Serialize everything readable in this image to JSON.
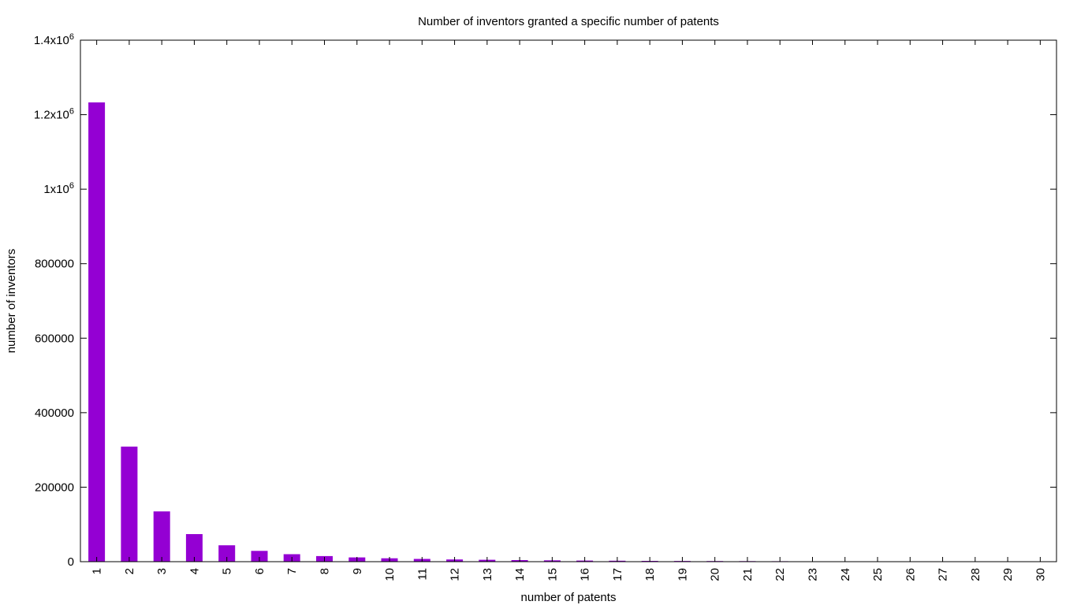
{
  "chart_data": {
    "type": "bar",
    "title": "Number of inventors granted a specific number of patents",
    "xlabel": "number of patents",
    "ylabel": "number of inventors",
    "ylim": [
      0,
      1400000
    ],
    "grid": false,
    "bar_color": "#9400d3",
    "yticks": [
      {
        "label": "0",
        "value": 0
      },
      {
        "label": "200000",
        "value": 200000
      },
      {
        "label": "400000",
        "value": 400000
      },
      {
        "label": "600000",
        "value": 600000
      },
      {
        "label": "800000",
        "value": 800000
      },
      {
        "label": "1x10",
        "sup": "6",
        "value": 1000000
      },
      {
        "label": "1.2x10",
        "sup": "6",
        "value": 1200000
      },
      {
        "label": "1.4x10",
        "sup": "6",
        "value": 1400000
      }
    ],
    "categories": [
      "1",
      "2",
      "3",
      "4",
      "5",
      "6",
      "7",
      "8",
      "9",
      "10",
      "11",
      "12",
      "13",
      "14",
      "15",
      "16",
      "17",
      "18",
      "19",
      "20",
      "21",
      "22",
      "23",
      "24",
      "25",
      "26",
      "27",
      "28",
      "29",
      "30"
    ],
    "values": [
      1233000,
      309000,
      135000,
      74000,
      44000,
      29000,
      20000,
      15000,
      11500,
      9000,
      7500,
      6000,
      5000,
      4200,
      3500,
      3000,
      2600,
      2200,
      1900,
      1700,
      1500,
      1300,
      1150,
      1000,
      900,
      800,
      700,
      620,
      0,
      0
    ]
  }
}
